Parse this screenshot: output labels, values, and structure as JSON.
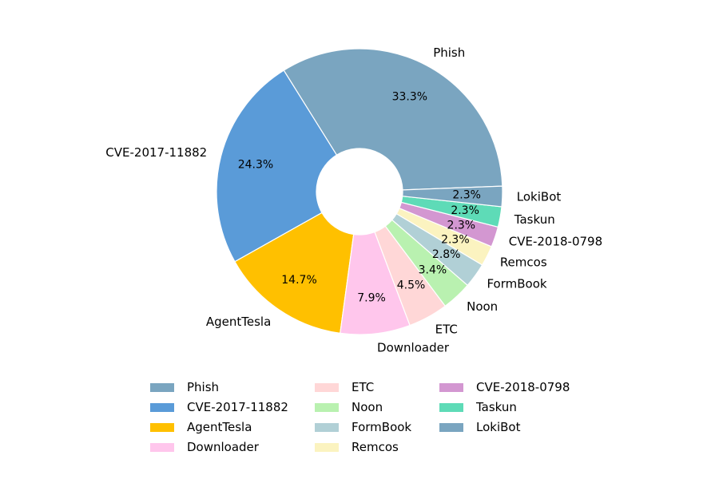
{
  "chart_data": {
    "type": "pie",
    "variant": "donut",
    "title": "",
    "categories": [
      "Phish",
      "CVE-2017-11882",
      "AgentTesla",
      "Downloader",
      "ETC",
      "Noon",
      "FormBook",
      "Remcos",
      "CVE-2018-0798",
      "Taskun",
      "LokiBot"
    ],
    "values": [
      33.3,
      24.3,
      14.7,
      7.9,
      4.5,
      3.4,
      2.8,
      2.3,
      2.3,
      2.3,
      2.3
    ],
    "value_labels": [
      "33.3%",
      "24.3%",
      "14.7%",
      "7.9%",
      "4.5%",
      "3.4%",
      "2.8%",
      "2.3%",
      "2.3%",
      "2.3%",
      "2.3%"
    ],
    "colors": [
      "#7aa5c0",
      "#5a9bd8",
      "#ffc000",
      "#ffc6ec",
      "#ffd7d7",
      "#b9f1b0",
      "#b1d0d6",
      "#fbf3c0",
      "#d397d1",
      "#5edbb7",
      "#7aa5c0"
    ],
    "start_angle_deg": 2.2,
    "direction": "counterclockwise",
    "legend": {
      "position": "bottom",
      "columns": 3,
      "entries": [
        "Phish",
        "CVE-2017-11882",
        "AgentTesla",
        "Downloader",
        "ETC",
        "Noon",
        "FormBook",
        "Remcos",
        "CVE-2018-0798",
        "Taskun",
        "LokiBot"
      ]
    }
  }
}
